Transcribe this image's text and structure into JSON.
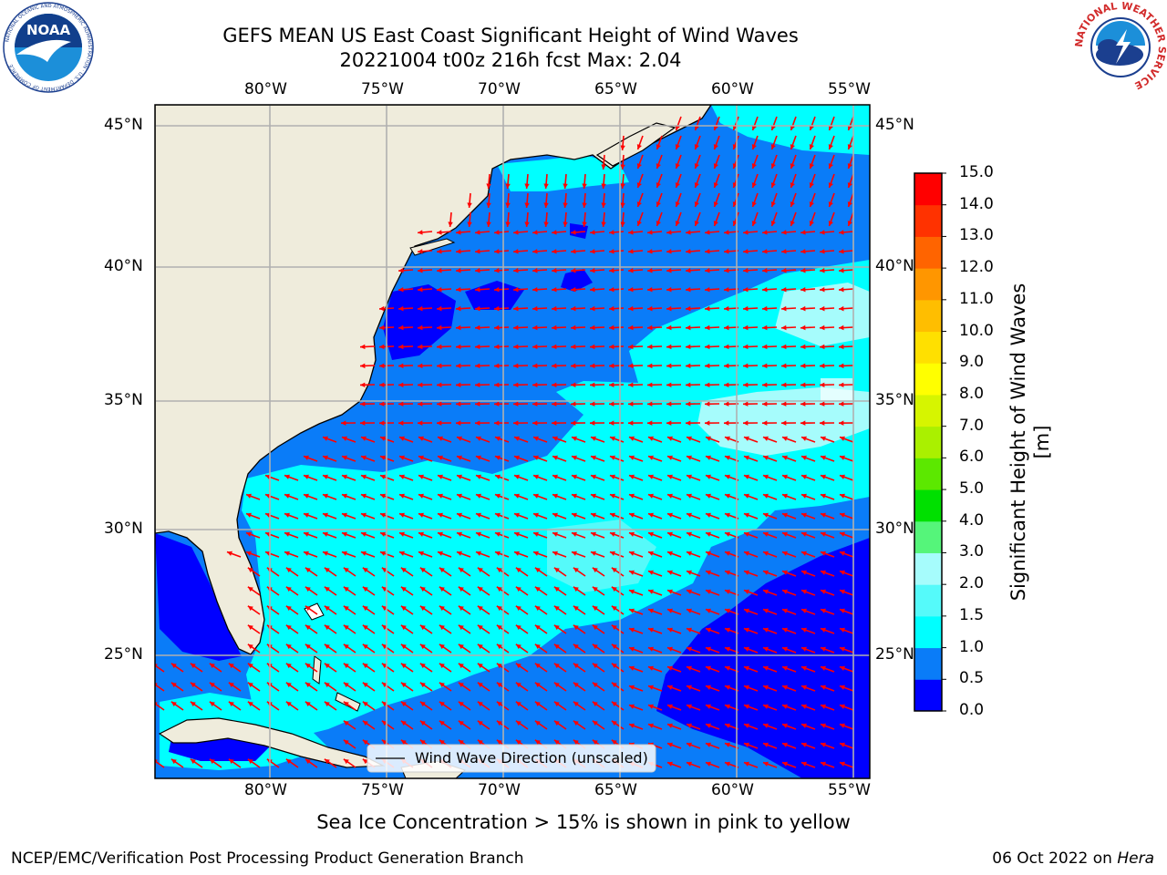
{
  "title": {
    "line1": "GEFS MEAN US East Coast Significant Height of Wind Waves",
    "line2": "20221004 t00z 216h fcst   Max: 2.04"
  },
  "map": {
    "lon_ticks": [
      "80°W",
      "75°W",
      "70°W",
      "65°W",
      "60°W",
      "55°W"
    ],
    "lat_ticks": [
      "45°N",
      "40°N",
      "35°N",
      "30°N",
      "25°N"
    ],
    "legend": "Wind Wave Direction (unscaled)",
    "arrow_color": "#ff0000",
    "land_color": "#efecdc"
  },
  "colorbar": {
    "label": "Significant Height of Wind Waves [m]",
    "levels": [
      "0.0",
      "0.5",
      "1.0",
      "1.5",
      "2.0",
      "3.0",
      "4.0",
      "5.0",
      "6.0",
      "7.0",
      "8.0",
      "9.0",
      "10.0",
      "11.0",
      "12.0",
      "13.0",
      "14.0",
      "15.0"
    ],
    "colors": [
      "#0000ff",
      "#0a7cf8",
      "#00ffff",
      "#55fafa",
      "#a6fcfc",
      "#55f57a",
      "#00e000",
      "#5ce800",
      "#aaf000",
      "#d6f500",
      "#ffff00",
      "#ffe000",
      "#ffbe00",
      "#ff9600",
      "#ff6400",
      "#ff3200",
      "#ff0000"
    ]
  },
  "footer": {
    "note": "Sea Ice Concentration > 15% is shown in pink to yellow",
    "left": "NCEP/EMC/Verification Post Processing Product Generation Branch",
    "right_date": "06 Oct 2022 on",
    "right_machine": "Hera"
  },
  "logos": {
    "noaa_text": "NOAA",
    "noaa_ring": "NATIONAL OCEANIC AND ATMOSPHERIC ADMINISTRATION · U.S. DEPARTMENT OF COMMERCE",
    "nws_ring": "NATIONAL WEATHER SERVICE"
  }
}
